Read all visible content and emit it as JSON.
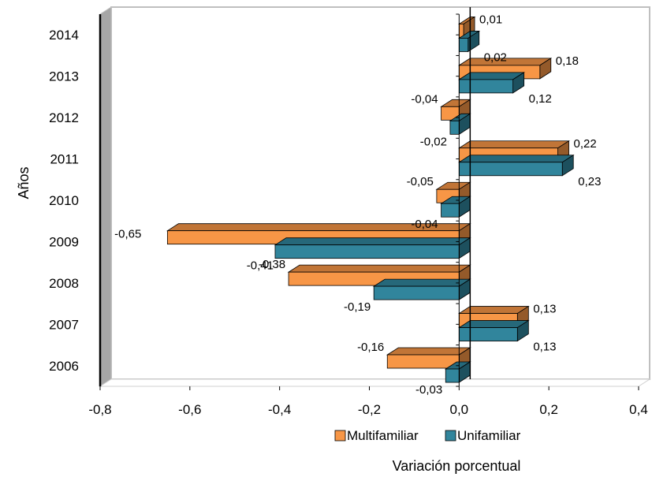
{
  "chart_data": {
    "type": "bar",
    "orientation": "horizontal",
    "style": "3d",
    "categories": [
      "2006",
      "2007",
      "2008",
      "2009",
      "2010",
      "2011",
      "2012",
      "2013",
      "2014"
    ],
    "series": [
      {
        "name": "Multifamiliar",
        "color": "#F79646",
        "values": [
          -0.16,
          0.13,
          -0.38,
          -0.65,
          -0.05,
          0.22,
          -0.04,
          0.18,
          0.01
        ],
        "labels": [
          "-0,16",
          "0,13",
          "-0,38",
          "-0,65",
          "-0,05",
          "0,22",
          "-0,04",
          "0,18",
          "0,01"
        ]
      },
      {
        "name": "Unifamiliar",
        "color": "#31859C",
        "values": [
          -0.03,
          0.13,
          -0.19,
          -0.41,
          -0.04,
          0.23,
          -0.02,
          0.12,
          0.02
        ],
        "labels": [
          "-0,03",
          "0,13",
          "-0,19",
          "-0,41",
          "-0,04",
          "0,23",
          "-0,02",
          "0,12",
          "0,02"
        ]
      }
    ],
    "xlabel": "Variación porcentual",
    "ylabel": "Años",
    "xlim": [
      -0.8,
      0.4
    ],
    "xticks": [
      "-0,8",
      "-0,6",
      "-0,4",
      "-0,2",
      "0,0",
      "0,2",
      "0,4"
    ],
    "legend_position": "bottom",
    "grid": false
  }
}
